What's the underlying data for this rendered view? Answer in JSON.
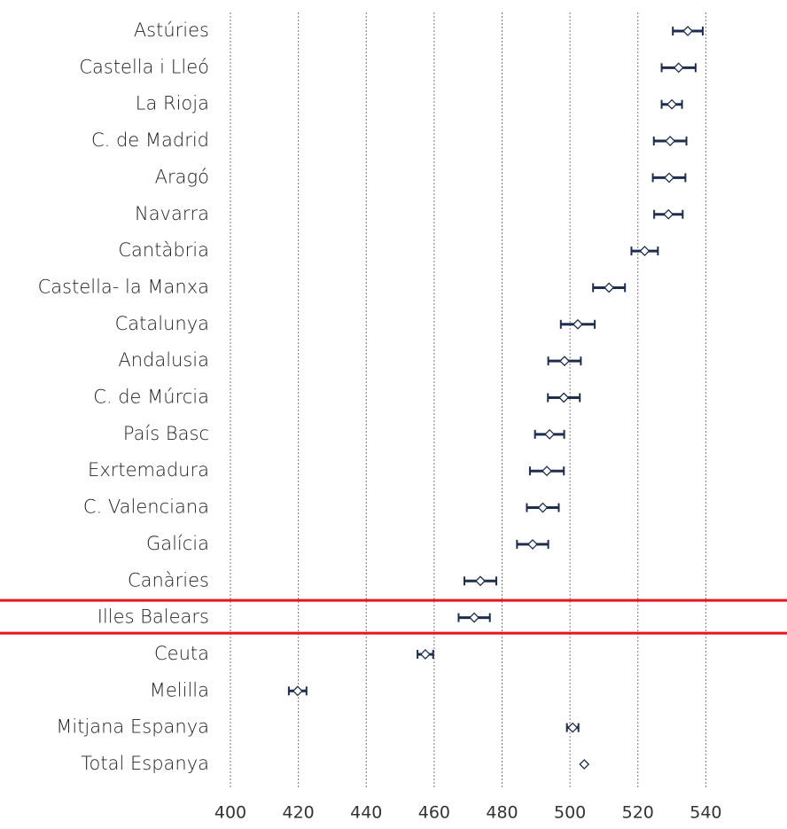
{
  "chart_data": {
    "type": "errorbar",
    "categories": [
      "Astúries",
      "Castella i Lleó",
      "La Rioja",
      "C. de Madrid",
      "Aragó",
      "Navarra",
      "Cantàbria",
      "Castella- la Manxa",
      "Catalunya",
      "Andalusia",
      "C. de Múrcia",
      "País Basc",
      "Exrtemadura",
      "C. Valenciana",
      "Galícia",
      "Canàries",
      "Illes Balears",
      "Ceuta",
      "Melilla",
      "Mitjana Espanya",
      "Total Espanya"
    ],
    "values": [
      534.7,
      532,
      530,
      529.5,
      529.2,
      529,
      522,
      511.5,
      502.3,
      498.4,
      498.2,
      494,
      493.2,
      492,
      489,
      473.6,
      471.8,
      457.4,
      419.8,
      500.8,
      504.2
    ],
    "errors": [
      4.4,
      5,
      3,
      4.8,
      4.8,
      4.2,
      3.9,
      4.7,
      5,
      4.8,
      4.7,
      4.3,
      5,
      4.7,
      4.6,
      4.7,
      4.6,
      2.3,
      2.6,
      1.7,
      0
    ],
    "color": "#1f2d4e",
    "xlim": [
      400,
      560
    ],
    "xticks": [
      400,
      420,
      440,
      460,
      480,
      500,
      520,
      540
    ],
    "grid": true,
    "highlight_index": 16,
    "highlight_color": "#e8141b"
  }
}
